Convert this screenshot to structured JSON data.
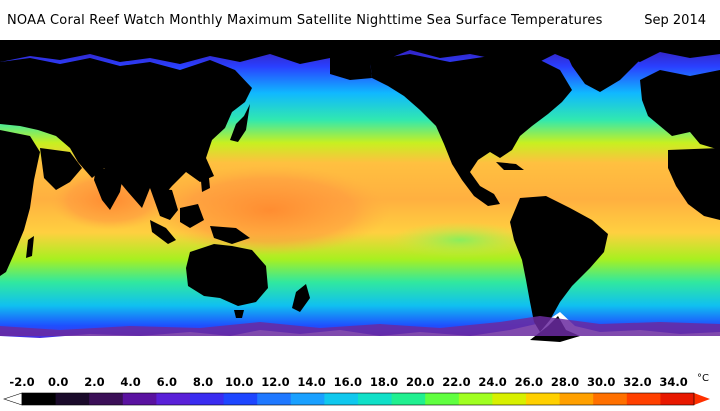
{
  "header": {
    "title": "NOAA Coral Reef Watch Monthly Maximum Satellite Nighttime Sea Surface Temperatures",
    "date": "Sep 2014"
  },
  "legend": {
    "unit": "°C",
    "labels": [
      "-2.0",
      "0.0",
      "2.0",
      "4.0",
      "6.0",
      "8.0",
      "10.0",
      "12.0",
      "14.0",
      "16.0",
      "18.0",
      "20.0",
      "22.0",
      "24.0",
      "26.0",
      "28.0",
      "30.0",
      "32.0",
      "34.0"
    ],
    "colors": [
      "#000000",
      "#1a0a2a",
      "#3b0f57",
      "#5a12a0",
      "#5a20d8",
      "#3a2cf0",
      "#1e46ff",
      "#1f78ff",
      "#19a0ff",
      "#10c8ee",
      "#10e0c8",
      "#20f090",
      "#60ff40",
      "#a0ff20",
      "#d8f000",
      "#ffd000",
      "#ffa000",
      "#ff7000",
      "#ff4000",
      "#e81800"
    ]
  },
  "colors": {
    "land": "#000000",
    "ice": "#ffffff",
    "warm_pool": "#ff9a40",
    "tropical": "#ffd060",
    "temperate": "#3fe8a0",
    "subpolar": "#1f6cff",
    "polar": "#5a1fd0"
  }
}
